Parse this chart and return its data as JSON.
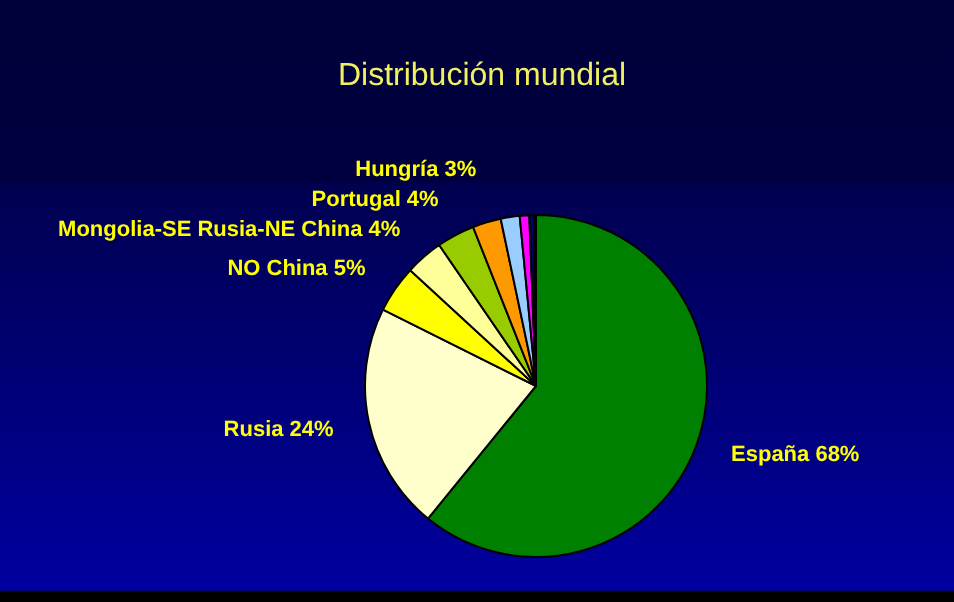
{
  "chart_data": {
    "type": "pie",
    "title": "Distribución mundial",
    "categories": [
      "España",
      "Rusia",
      "NO China",
      "Mongolia-SE Rusia-NE China",
      "Portugal",
      "Hungría",
      null,
      null,
      null,
      null
    ],
    "values": [
      68,
      24,
      5,
      4,
      4,
      3,
      2,
      1,
      0.5,
      0.2
    ],
    "value_labels": [
      "68%",
      "24%",
      "5%",
      "4%",
      "4%",
      "3%",
      null,
      null,
      null,
      null
    ],
    "colors": [
      "#008000",
      "#ffffcc",
      "#ffff00",
      "#ffff99",
      "#99cc00",
      "#ff9900",
      "#99ccff",
      "#ff00ff",
      "#000066",
      "#33cccc"
    ],
    "legend": false
  }
}
